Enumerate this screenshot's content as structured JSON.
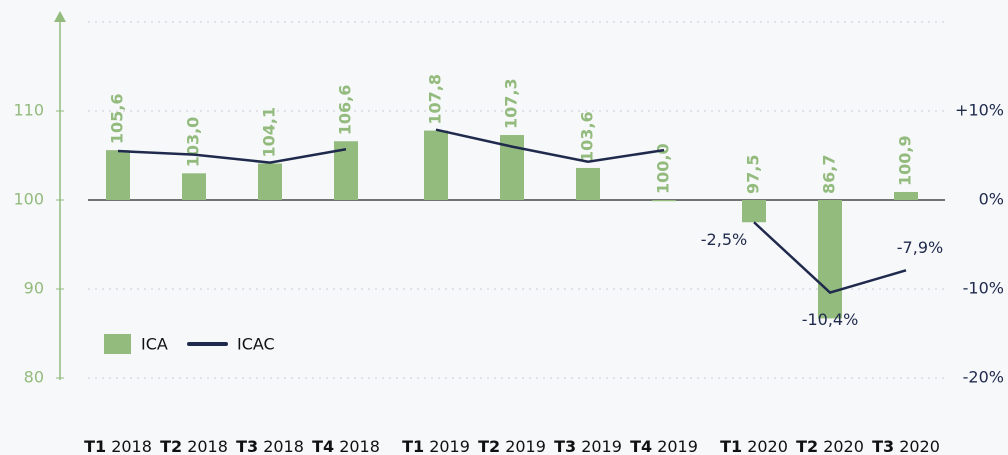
{
  "chart_data": {
    "type": "bar",
    "categories": [
      "T1 2018",
      "T2 2018",
      "T3 2018",
      "T4 2018",
      null,
      "T1 2019",
      "T2 2019",
      "T3 2019",
      "T4 2019",
      null,
      "T1 2020",
      "T2 2020",
      "T3 2020"
    ],
    "series": [
      {
        "name": "ICA",
        "type": "bar",
        "color": "#93bb7e",
        "values": [
          105.6,
          103.0,
          104.1,
          106.6,
          null,
          107.8,
          107.3,
          103.6,
          100.0,
          null,
          97.5,
          86.7,
          100.9
        ],
        "value_labels": [
          "105,6",
          "103,0",
          "104,1",
          "106,6",
          null,
          "107,8",
          "107,3",
          "103,6",
          "100,0",
          null,
          "97,5",
          "86,7",
          "100,9"
        ]
      },
      {
        "name": "ICAC",
        "type": "line",
        "axis": "y2",
        "color": "#1f2a4d",
        "values": [
          5.5,
          5.1,
          4.2,
          5.7,
          null,
          7.9,
          6.0,
          4.3,
          5.6,
          null,
          -2.5,
          -10.4,
          -7.9
        ],
        "value_labels": [
          null,
          null,
          null,
          null,
          null,
          null,
          null,
          null,
          null,
          null,
          "-2,5%",
          "-10,4%",
          "-7,9%"
        ]
      }
    ],
    "ylim": [
      80,
      120
    ],
    "yticks": [
      80,
      90,
      100,
      110
    ],
    "y2lim": [
      -20,
      20
    ],
    "y2ticks": [
      {
        "value": -20,
        "label": "-20%"
      },
      {
        "value": -10,
        "label": "-10%"
      },
      {
        "value": 0,
        "label": "0%"
      },
      {
        "value": 10,
        "label": "+10%"
      }
    ],
    "legend": "lower-left"
  }
}
